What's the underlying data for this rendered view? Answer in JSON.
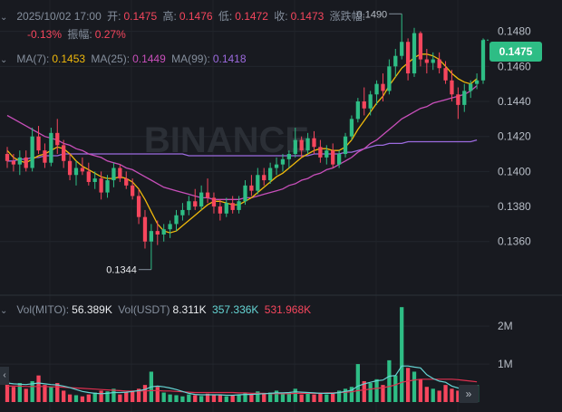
{
  "header": {
    "datetime": "2025/10/02 17:00",
    "open_label": "开:",
    "open": "0.1475",
    "high_label": "高:",
    "high": "0.1476",
    "low_label": "低:",
    "low": "0.1472",
    "close_label": "收:",
    "close": "0.1473",
    "change_label": "涨跌幅:",
    "change": "-0.13%",
    "amp_label": "振幅:",
    "amp": "0.27%"
  },
  "ma": {
    "ma7_label": "MA(7):",
    "ma7": "0.1453",
    "ma25_label": "MA(25):",
    "ma25": "0.1449",
    "ma99_label": "MA(99):",
    "ma99": "0.1418"
  },
  "volume_legend": {
    "vol_mito_label": "Vol(MITO):",
    "vol_mito": "56.389K",
    "vol_usdt_label": "Vol(USDT)",
    "vol_usdt": "8.311K",
    "ma_a": "357.336K",
    "ma_b": "531.968K"
  },
  "watermark": "BINANCE",
  "last_price": "0.1475",
  "colors": {
    "up": "#2ebd85",
    "down": "#f6465d",
    "ma7": "#f0b90b",
    "ma25": "#c84fba",
    "ma99": "#9c6ade",
    "vol_ma_a": "#65d4d3",
    "vol_ma_b": "#e0304f"
  },
  "chart_data": {
    "type": "candlestick",
    "y_ticks": [
      "0.1480",
      "0.1460",
      "0.1440",
      "0.1420",
      "0.1400",
      "0.1380",
      "0.1360"
    ],
    "price_range": [
      0.13335,
      0.14855
    ],
    "volume_ticks": [
      "2M",
      "1M"
    ],
    "volume_range": [
      0,
      2.6
    ],
    "annotations": {
      "high": "0.1490",
      "low": "0.1344"
    },
    "candles": [
      [
        0.141,
        0.1414,
        0.1402,
        0.1406
      ],
      [
        0.1406,
        0.141,
        0.14,
        0.1404
      ],
      [
        0.1404,
        0.1412,
        0.1398,
        0.1408
      ],
      [
        0.1408,
        0.1412,
        0.14,
        0.1402
      ],
      [
        0.1402,
        0.1425,
        0.14,
        0.142
      ],
      [
        0.142,
        0.1426,
        0.141,
        0.1412
      ],
      [
        0.1412,
        0.1416,
        0.1402,
        0.1405
      ],
      [
        0.1405,
        0.1425,
        0.1403,
        0.1422
      ],
      [
        0.1422,
        0.143,
        0.141,
        0.1415
      ],
      [
        0.1415,
        0.1418,
        0.1402,
        0.1406
      ],
      [
        0.1406,
        0.141,
        0.1395,
        0.1398
      ],
      [
        0.1398,
        0.1406,
        0.1392,
        0.1402
      ],
      [
        0.1402,
        0.1408,
        0.1398,
        0.14
      ],
      [
        0.14,
        0.1405,
        0.1392,
        0.1394
      ],
      [
        0.1394,
        0.14,
        0.139,
        0.1396
      ],
      [
        0.1396,
        0.14,
        0.1384,
        0.1388
      ],
      [
        0.1388,
        0.1398,
        0.1385,
        0.1395
      ],
      [
        0.1395,
        0.1405,
        0.1391,
        0.1402
      ],
      [
        0.1402,
        0.1404,
        0.1394,
        0.1396
      ],
      [
        0.1396,
        0.14,
        0.139,
        0.1392
      ],
      [
        0.1392,
        0.1396,
        0.1384,
        0.1386
      ],
      [
        0.1386,
        0.139,
        0.137,
        0.1374
      ],
      [
        0.1374,
        0.1378,
        0.1356,
        0.136
      ],
      [
        0.136,
        0.137,
        0.1344,
        0.1366
      ],
      [
        0.1366,
        0.1372,
        0.1358,
        0.1364
      ],
      [
        0.1364,
        0.137,
        0.136,
        0.1367
      ],
      [
        0.1367,
        0.1372,
        0.1362,
        0.137
      ],
      [
        0.137,
        0.1378,
        0.1366,
        0.1375
      ],
      [
        0.1375,
        0.1382,
        0.1372,
        0.1378
      ],
      [
        0.1378,
        0.1386,
        0.1375,
        0.1383
      ],
      [
        0.1383,
        0.139,
        0.1378,
        0.138
      ],
      [
        0.138,
        0.1392,
        0.1378,
        0.1388
      ],
      [
        0.1388,
        0.1396,
        0.1382,
        0.1385
      ],
      [
        0.1385,
        0.1388,
        0.1376,
        0.138
      ],
      [
        0.138,
        0.1384,
        0.1372,
        0.1376
      ],
      [
        0.1376,
        0.1385,
        0.1374,
        0.1382
      ],
      [
        0.1382,
        0.1386,
        0.1376,
        0.1378
      ],
      [
        0.1378,
        0.1386,
        0.1376,
        0.1383
      ],
      [
        0.1383,
        0.1395,
        0.1381,
        0.1392
      ],
      [
        0.1392,
        0.1398,
        0.1386,
        0.1389
      ],
      [
        0.1389,
        0.1402,
        0.1387,
        0.1398
      ],
      [
        0.1398,
        0.1402,
        0.1392,
        0.1395
      ],
      [
        0.1395,
        0.1405,
        0.1393,
        0.1402
      ],
      [
        0.1402,
        0.1408,
        0.1398,
        0.1404
      ],
      [
        0.1404,
        0.141,
        0.14,
        0.1407
      ],
      [
        0.1407,
        0.1412,
        0.1402,
        0.141
      ],
      [
        0.141,
        0.1425,
        0.1408,
        0.1418
      ],
      [
        0.1418,
        0.142,
        0.1408,
        0.1412
      ],
      [
        0.1412,
        0.1422,
        0.141,
        0.1419
      ],
      [
        0.1419,
        0.1423,
        0.141,
        0.1414
      ],
      [
        0.1414,
        0.1418,
        0.1405,
        0.1408
      ],
      [
        0.1408,
        0.1415,
        0.1404,
        0.1412
      ],
      [
        0.1412,
        0.1416,
        0.1402,
        0.1404
      ],
      [
        0.1404,
        0.1412,
        0.1402,
        0.141
      ],
      [
        0.141,
        0.1422,
        0.1408,
        0.142
      ],
      [
        0.142,
        0.1432,
        0.1418,
        0.143
      ],
      [
        0.143,
        0.1442,
        0.1428,
        0.144
      ],
      [
        0.144,
        0.1448,
        0.1432,
        0.1436
      ],
      [
        0.1436,
        0.1446,
        0.1432,
        0.1444
      ],
      [
        0.1444,
        0.1452,
        0.1438,
        0.145
      ],
      [
        0.145,
        0.1456,
        0.144,
        0.1446
      ],
      [
        0.1446,
        0.1464,
        0.1444,
        0.146
      ],
      [
        0.146,
        0.147,
        0.1454,
        0.1466
      ],
      [
        0.1466,
        0.149,
        0.1464,
        0.1474
      ],
      [
        0.1474,
        0.1476,
        0.1452,
        0.1456
      ],
      [
        0.1456,
        0.1482,
        0.1454,
        0.1479
      ],
      [
        0.1479,
        0.148,
        0.146,
        0.1464
      ],
      [
        0.1464,
        0.147,
        0.1456,
        0.1462
      ],
      [
        0.1462,
        0.1468,
        0.1458,
        0.1464
      ],
      [
        0.1464,
        0.1468,
        0.1456,
        0.1459
      ],
      [
        0.1459,
        0.1463,
        0.145,
        0.1452
      ],
      [
        0.1452,
        0.1458,
        0.144,
        0.1444
      ],
      [
        0.1444,
        0.1448,
        0.143,
        0.1438
      ],
      [
        0.1438,
        0.145,
        0.1434,
        0.1446
      ],
      [
        0.1446,
        0.1452,
        0.1442,
        0.145
      ],
      [
        0.145,
        0.1456,
        0.1447,
        0.1452
      ],
      [
        0.1452,
        0.1476,
        0.145,
        0.1475
      ]
    ],
    "volumes": [
      0.55,
      0.4,
      0.5,
      0.35,
      0.55,
      0.7,
      0.45,
      0.4,
      0.5,
      0.3,
      0.2,
      0.18,
      0.15,
      0.2,
      0.25,
      0.3,
      0.28,
      0.35,
      0.2,
      0.25,
      0.3,
      0.35,
      0.45,
      0.8,
      0.4,
      0.25,
      0.2,
      0.18,
      0.15,
      0.2,
      0.18,
      0.16,
      0.22,
      0.18,
      0.2,
      0.15,
      0.18,
      0.2,
      0.25,
      0.2,
      0.28,
      0.22,
      0.25,
      0.3,
      0.22,
      0.25,
      0.35,
      0.2,
      0.22,
      0.2,
      0.25,
      0.2,
      0.22,
      0.3,
      0.35,
      0.4,
      1.0,
      0.55,
      0.5,
      0.6,
      0.45,
      1.1,
      0.7,
      2.5,
      0.9,
      0.8,
      0.6,
      0.4,
      0.35,
      0.3,
      0.45,
      0.35,
      0.3,
      0.28,
      0.25,
      0.45
    ],
    "ma7_line": [
      0.1412,
      0.1408,
      0.1406,
      0.1405,
      0.1407,
      0.1409,
      0.141,
      0.1412,
      0.1414,
      0.1413,
      0.141,
      0.1406,
      0.1403,
      0.1401,
      0.1399,
      0.1397,
      0.1396,
      0.1396,
      0.1397,
      0.1396,
      0.1394,
      0.139,
      0.1384,
      0.1377,
      0.137,
      0.1366,
      0.1365,
      0.1366,
      0.1369,
      0.1372,
      0.1375,
      0.1378,
      0.1381,
      0.1383,
      0.1383,
      0.1382,
      0.1381,
      0.1381,
      0.1383,
      0.1385,
      0.1388,
      0.1391,
      0.1394,
      0.1397,
      0.1399,
      0.1402,
      0.1405,
      0.1408,
      0.141,
      0.1412,
      0.1413,
      0.1413,
      0.1412,
      0.1412,
      0.1414,
      0.1418,
      0.1424,
      0.1429,
      0.1434,
      0.1439,
      0.1443,
      0.1449,
      0.1454,
      0.1459,
      0.1462,
      0.1465,
      0.1467,
      0.1467,
      0.1466,
      0.1464,
      0.146,
      0.1456,
      0.1453,
      0.1451,
      0.145,
      0.1453
    ],
    "ma25_line": [
      0.1432,
      0.143,
      0.1428,
      0.1426,
      0.1424,
      0.1422,
      0.142,
      0.1419,
      0.1418,
      0.1416,
      0.1415,
      0.1413,
      0.1412,
      0.141,
      0.1409,
      0.1408,
      0.1406,
      0.1405,
      0.1404,
      0.1402,
      0.1401,
      0.1399,
      0.1397,
      0.1395,
      0.1393,
      0.1391,
      0.139,
      0.1389,
      0.1388,
      0.1387,
      0.1386,
      0.1385,
      0.1385,
      0.1384,
      0.1384,
      0.1384,
      0.1384,
      0.1384,
      0.1385,
      0.1385,
      0.1386,
      0.1387,
      0.1388,
      0.1389,
      0.139,
      0.1392,
      0.1393,
      0.1395,
      0.1396,
      0.1398,
      0.1399,
      0.1401,
      0.1402,
      0.1404,
      0.1406,
      0.1408,
      0.1411,
      0.1413,
      0.1416,
      0.1418,
      0.1421,
      0.1424,
      0.1427,
      0.143,
      0.1432,
      0.1434,
      0.1436,
      0.1437,
      0.1439,
      0.144,
      0.1441,
      0.1442,
      0.1443,
      0.1444,
      0.1446,
      0.1449
    ],
    "ma99_line": [
      0.1406,
      0.1406,
      0.1407,
      0.1407,
      0.1408,
      0.1408,
      0.1409,
      0.1409,
      0.1409,
      0.141,
      0.141,
      0.141,
      0.141,
      0.141,
      0.141,
      0.141,
      0.141,
      0.141,
      0.141,
      0.141,
      0.141,
      0.141,
      0.141,
      0.141,
      0.141,
      0.141,
      0.141,
      0.141,
      0.141,
      0.1409,
      0.1409,
      0.1409,
      0.1409,
      0.1409,
      0.1409,
      0.1409,
      0.1409,
      0.1409,
      0.1409,
      0.1409,
      0.1409,
      0.1409,
      0.1409,
      0.1409,
      0.1409,
      0.1409,
      0.1409,
      0.1409,
      0.1409,
      0.141,
      0.141,
      0.141,
      0.141,
      0.141,
      0.1411,
      0.1411,
      0.1412,
      0.1413,
      0.1414,
      0.1415,
      0.1415,
      0.1416,
      0.1416,
      0.1416,
      0.1417,
      0.1417,
      0.1417,
      0.1417,
      0.1417,
      0.1417,
      0.1417,
      0.1417,
      0.1417,
      0.1417,
      0.1417,
      0.1418
    ],
    "vol_ma_a_line": [
      0.5,
      0.48,
      0.47,
      0.46,
      0.48,
      0.5,
      0.48,
      0.46,
      0.45,
      0.42,
      0.38,
      0.33,
      0.28,
      0.25,
      0.23,
      0.22,
      0.23,
      0.25,
      0.25,
      0.26,
      0.28,
      0.3,
      0.33,
      0.4,
      0.42,
      0.4,
      0.37,
      0.33,
      0.28,
      0.23,
      0.2,
      0.19,
      0.19,
      0.19,
      0.19,
      0.18,
      0.18,
      0.19,
      0.2,
      0.2,
      0.21,
      0.22,
      0.23,
      0.24,
      0.24,
      0.25,
      0.27,
      0.26,
      0.25,
      0.24,
      0.23,
      0.23,
      0.23,
      0.25,
      0.28,
      0.31,
      0.42,
      0.48,
      0.52,
      0.56,
      0.58,
      0.68,
      0.7,
      0.95,
      0.95,
      0.92,
      0.9,
      0.72,
      0.62,
      0.55,
      0.52,
      0.42,
      0.37,
      0.35,
      0.33,
      0.357
    ],
    "vol_ma_b_line": [
      0.42,
      0.42,
      0.42,
      0.41,
      0.41,
      0.41,
      0.41,
      0.4,
      0.4,
      0.39,
      0.38,
      0.37,
      0.36,
      0.35,
      0.34,
      0.33,
      0.32,
      0.31,
      0.3,
      0.29,
      0.29,
      0.29,
      0.29,
      0.3,
      0.3,
      0.29,
      0.29,
      0.28,
      0.27,
      0.26,
      0.25,
      0.25,
      0.25,
      0.25,
      0.25,
      0.25,
      0.25,
      0.24,
      0.24,
      0.23,
      0.23,
      0.23,
      0.22,
      0.22,
      0.22,
      0.22,
      0.23,
      0.23,
      0.23,
      0.23,
      0.23,
      0.24,
      0.24,
      0.25,
      0.26,
      0.27,
      0.3,
      0.32,
      0.34,
      0.36,
      0.38,
      0.41,
      0.45,
      0.52,
      0.55,
      0.58,
      0.6,
      0.6,
      0.6,
      0.6,
      0.6,
      0.6,
      0.59,
      0.57,
      0.55,
      0.532
    ]
  }
}
